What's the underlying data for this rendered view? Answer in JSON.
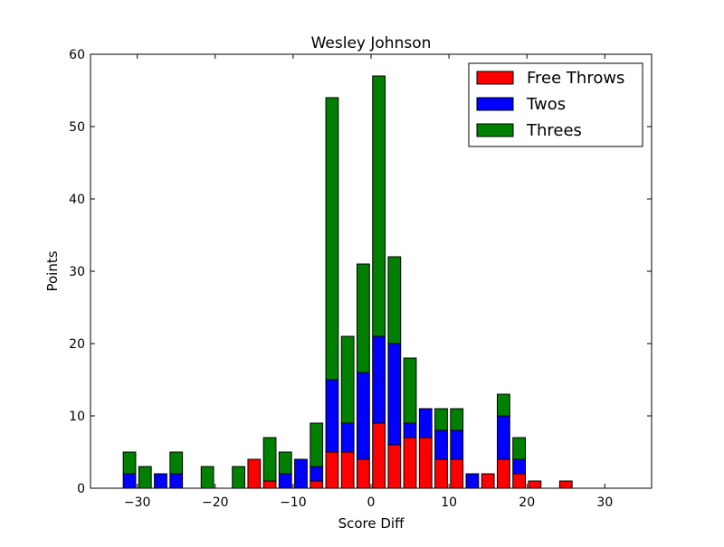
{
  "chart_data": {
    "type": "bar",
    "stacked": true,
    "title": "Wesley Johnson",
    "xlabel": "Score Diff",
    "ylabel": "Points",
    "xlim": [
      -36,
      36
    ],
    "ylim": [
      0,
      60
    ],
    "xticks": [
      -30,
      -20,
      -10,
      0,
      10,
      20,
      30
    ],
    "xtick_labels": [
      "−30",
      "−20",
      "−10",
      "0",
      "10",
      "20",
      "30"
    ],
    "yticks": [
      0,
      10,
      20,
      30,
      40,
      50,
      60
    ],
    "ytick_labels": [
      "0",
      "10",
      "20",
      "30",
      "40",
      "50",
      "60"
    ],
    "grid": false,
    "legend_position": "top-right",
    "bar_width": 1.6,
    "x": [
      -33,
      -31,
      -29,
      -27,
      -25,
      -23,
      -21,
      -19,
      -17,
      -15,
      -13,
      -11,
      -9,
      -7,
      -5,
      -3,
      -1,
      1,
      3,
      5,
      7,
      9,
      11,
      13,
      15,
      17,
      19,
      21,
      23,
      25,
      27,
      29,
      31,
      33
    ],
    "series": [
      {
        "name": "Free Throws",
        "color": "#ff0000",
        "values": [
          0,
          0,
          0,
          0,
          0,
          0,
          0,
          0,
          0,
          4,
          1,
          0,
          0,
          1,
          5,
          5,
          4,
          9,
          6,
          7,
          7,
          4,
          4,
          0,
          2,
          4,
          2,
          1,
          0,
          1,
          0,
          0,
          0,
          0
        ]
      },
      {
        "name": "Twos",
        "color": "#0000ff",
        "values": [
          0,
          2,
          0,
          2,
          2,
          0,
          0,
          0,
          0,
          0,
          0,
          2,
          4,
          2,
          10,
          4,
          12,
          12,
          14,
          2,
          4,
          4,
          4,
          2,
          0,
          6,
          2,
          0,
          0,
          0,
          0,
          0,
          0,
          0
        ]
      },
      {
        "name": "Threes",
        "color": "#008000",
        "values": [
          0,
          3,
          3,
          0,
          3,
          0,
          3,
          0,
          3,
          0,
          6,
          3,
          0,
          6,
          39,
          12,
          15,
          36,
          12,
          9,
          0,
          3,
          3,
          0,
          0,
          3,
          3,
          0,
          0,
          0,
          0,
          0,
          0,
          0
        ]
      }
    ]
  }
}
